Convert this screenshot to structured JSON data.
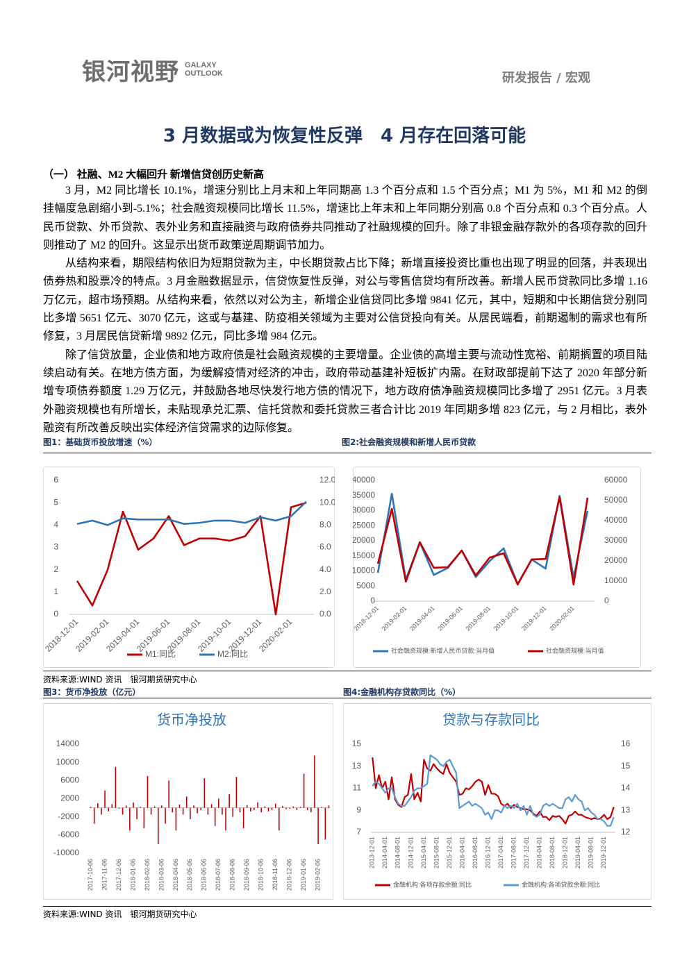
{
  "header": {
    "logo": "银河视野",
    "logo_en": "GALAXY OUTLOOK",
    "report_type": "研发报告 / 宏观"
  },
  "title": "3 月数据或为恢复性反弹　4 月存在回落可能",
  "section_heading": "（一）  社融、M2 大幅回升    新增信贷创历史新高",
  "paragraphs": [
    "3 月，M2 同比增长 10.1%，增速分别比上月末和上年同期高 1.3 个百分点和 1.5 个百分点；M1 为 5%，M1 和 M2 的倒挂幅度急剧缩小到-5.1%；社会融资规模同比增长 11.5%，增速比上年末和上年同期分别高 0.8 个百分点和 0.3 个百分点。人民币贷款、外币贷款、表外业务和直接融资与政府债券共同推动了社融规模的回升。除了非银金融存款外的各项存款的回升则推动了 M2 的回升。这显示出货币政策逆周期调节加力。",
    "从结构来看，期限结构依旧为短期贷款为主，中长期贷款占比下降；新增直接投资比重也出现了明显的回落，并表现出债券热和股票冷的特点。3 月金融数据显示，信贷恢复性反弹，对公与零售信贷均有所改善。新增人民币贷款同比多增 1.16 万亿元，超市场预期。从结构来看，依然以对公为主，新增企业信贷同比多增 9841 亿元，其中，短期和中长期信贷分别同比多增 5651 亿元、3070 亿元，这或与基建、防疫相关领域为主要对公信贷投向有关。从居民端看，前期遏制的需求也有所修复，3 月居民信贷新增 9892 亿元，同比多增 984 亿元。",
    "除了信贷放量，企业债和地方政府债是社会融资规模的主要增量。企业债的高增主要与流动性宽裕、前期搁置的项目陆续启动有关。在地方债方面，为缓解疫情对经济的冲击，政府带动基建补短板扩内需。在财政部提前下达了 2020 年部分新增专项债券额度 1.29 万亿元，并鼓励各地尽快发行地方债的情况下，地方政府债净融资规模同比多增了 2951 亿元。3 月表外融资规模也有所增长，未贴现承兑汇票、信托贷款和委托贷款三者合计比 2019 年同期多增 823 亿元，与 2 月相比，表外融资有所改善反映出实体经济信贷需求的边际修复。"
  ],
  "captions": [
    "图1：基础货币投放增速（%）",
    "图2:社会融资规模和新增人民币贷款",
    "图3：货币净投放（亿元）",
    "图4:金融机构存贷款同比（%）"
  ],
  "sources": [
    "资料来源:WIND 资讯　银河期货研究中心",
    "资料来源:WIND 资讯　银河期货研究中心"
  ],
  "chart_data": [
    {
      "type": "line",
      "grid": false,
      "legend": "bottom",
      "categories": [
        "2018-12-01",
        null,
        "2019-02-01",
        null,
        "2019-04-01",
        null,
        "2019-06-01",
        null,
        "2019-08-01",
        null,
        "2019-10-01",
        null,
        "2019-12-01",
        null,
        "2020-02-01",
        null
      ],
      "series": [
        {
          "name": "M1:同比",
          "color": "#c00000",
          "values": [
            1.5,
            0.4,
            2.0,
            4.6,
            2.9,
            3.4,
            4.4,
            3.1,
            3.4,
            3.4,
            3.3,
            3.5,
            4.4,
            0.0,
            4.8,
            5.0
          ]
        },
        {
          "name": "M2:同比",
          "color": "#2e75b6",
          "axis": "y2",
          "values": [
            8.1,
            8.4,
            8.0,
            8.6,
            8.5,
            8.5,
            8.5,
            8.1,
            8.2,
            8.4,
            8.4,
            8.2,
            8.7,
            8.4,
            8.8,
            10.1
          ]
        }
      ],
      "ylim": [
        0,
        6
      ],
      "yticks": [
        0,
        1,
        2,
        3,
        4,
        5,
        6
      ],
      "y2lim": [
        0,
        12
      ],
      "y2ticks": [
        {
          "value": 0,
          "label": "0.0"
        },
        {
          "value": 2,
          "label": "2.0"
        },
        {
          "value": 4,
          "label": "4.0"
        },
        {
          "value": 6,
          "label": "6.0"
        },
        {
          "value": 8,
          "label": "8.0"
        },
        {
          "value": 10,
          "label": "10.0"
        },
        {
          "value": 12,
          "label": "12.0"
        }
      ]
    },
    {
      "type": "line",
      "grid": false,
      "legend": "bottom",
      "categories": [
        "2018-12-01",
        null,
        "2019-02-01",
        null,
        "2019-04-01",
        null,
        "2019-06-01",
        null,
        "2019-08-01",
        null,
        "2019-10-01",
        null,
        "2019-12-01",
        null,
        "2020-02-01",
        null
      ],
      "series": [
        {
          "name": "社会融资规模:新增人民币贷款:当月值",
          "color": "#2e75b6",
          "values": [
            9400,
            35600,
            7100,
            19500,
            8700,
            11000,
            16800,
            8000,
            13300,
            17500,
            5700,
            13800,
            10800,
            34900,
            7800,
            29900
          ]
        },
        {
          "name": "社会融资规模:当月值",
          "color": "#c00000",
          "axis": "y2",
          "values": [
            18600,
            45900,
            9700,
            29300,
            16600,
            16900,
            25200,
            12800,
            21700,
            23800,
            8300,
            20700,
            21000,
            51700,
            8300,
            51400
          ]
        }
      ],
      "ylim": [
        0,
        40000
      ],
      "yticks": [
        0,
        5000,
        10000,
        15000,
        20000,
        25000,
        30000,
        35000,
        40000
      ],
      "y2lim": [
        0,
        60000
      ],
      "y2ticks": [
        0,
        10000,
        20000,
        30000,
        40000,
        50000,
        60000
      ]
    },
    {
      "type": "bar",
      "title": "货币净投放",
      "grid": false,
      "color": "#c00000",
      "categories": [
        "2017-10-06",
        null,
        null,
        null,
        "2017-11-06",
        null,
        null,
        null,
        "2017-12-06",
        null,
        null,
        null,
        "2018-01-06",
        null,
        null,
        null,
        "2018-02-06",
        null,
        null,
        null,
        "2018-03-06",
        null,
        null,
        null,
        "2018-04-06",
        null,
        null,
        null,
        "2018-05-06",
        null,
        null,
        null,
        "2018-06-06",
        null,
        null,
        null,
        "2018-07-06",
        null,
        null,
        null,
        "2018-08-06",
        null,
        null,
        null,
        "2018-09-06",
        null,
        null,
        null,
        "2018-10-06",
        null,
        null,
        null,
        "2018-11-06",
        null,
        null,
        null,
        "2018-12-06",
        null,
        null,
        null,
        "2019-01-06",
        null,
        null,
        null,
        "2019-02-06",
        null,
        null,
        null
      ],
      "values": [
        200,
        -3500,
        1000,
        -1500,
        3800,
        -800,
        800,
        9000,
        -200,
        -1500,
        500,
        -5000,
        1200,
        -2500,
        200,
        -4500,
        7000,
        -1500,
        300,
        -8000,
        500,
        -3500,
        6000,
        -1000,
        -5000,
        700,
        -1500,
        2500,
        -2500,
        500,
        -1200,
        -500,
        6500,
        -1500,
        800,
        -4000,
        2000,
        -1500,
        -5000,
        3000,
        -2000,
        6800,
        -1000,
        -4500,
        600,
        -800,
        -500,
        1200,
        -1000,
        300,
        -800,
        -500,
        900,
        -5000,
        400,
        -300,
        -200,
        300,
        -500,
        200,
        7500,
        -500,
        -1000,
        11500,
        -8000,
        200,
        -7000,
        500
      ],
      "ylim": [
        -10000,
        14000
      ],
      "yticks": [
        -10000,
        -6000,
        -2000,
        2000,
        6000,
        10000,
        14000
      ]
    },
    {
      "type": "line",
      "title": "贷款与存款同比",
      "grid": false,
      "legend": "bottom",
      "categories": [
        "2013-12-01",
        null,
        null,
        null,
        "2014-04-01",
        null,
        null,
        null,
        "2014-08-01",
        null,
        null,
        null,
        "2014-12-01",
        null,
        null,
        null,
        "2015-04-01",
        null,
        null,
        null,
        "2015-08-01",
        null,
        null,
        null,
        "2015-12-01",
        null,
        null,
        null,
        "2016-04-01",
        null,
        null,
        null,
        "2016-08-01",
        null,
        null,
        null,
        "2016-12-01",
        null,
        null,
        null,
        "2017-04-01",
        null,
        null,
        null,
        "2017-08-01",
        null,
        null,
        null,
        "2017-12-01",
        null,
        null,
        null,
        "2018-04-01",
        null,
        null,
        null,
        "2018-08-01",
        null,
        null,
        null,
        "2018-12-01",
        null,
        null,
        null,
        "2019-04-01",
        null,
        null,
        null,
        "2019-08-01",
        null,
        null,
        null,
        "2019-12-01",
        null,
        null,
        null
      ],
      "series": [
        {
          "name": "金融机构:各项存款余额:同比",
          "color": "#c00000",
          "values": [
            13.8,
            11.0,
            12.2,
            11.0,
            11.6,
            10.0,
            12.0,
            10.0,
            9.5,
            9.3,
            10.2,
            10.4,
            12.3,
            10.0,
            10.6,
            9.8,
            13.6,
            12.8,
            12.6,
            13.2,
            12.8,
            12.5,
            12.3,
            13.2,
            12.4,
            12.0,
            11.6,
            10.4,
            10.5,
            11.0,
            10.9,
            11.2,
            11.6,
            11.8,
            11.6,
            10.4,
            11.3,
            10.5,
            10.5,
            10.3,
            9.6,
            9.4,
            9.6,
            9.2,
            9.5,
            9.3,
            9.2,
            9.1,
            9.1,
            9.0,
            8.7,
            8.5,
            8.9,
            8.4,
            8.4,
            8.1,
            8.5,
            8.4,
            8.5,
            8.2,
            7.8,
            8.5,
            8.6,
            8.9,
            8.6,
            8.6,
            8.4,
            8.3,
            8.2,
            8.3,
            8.2,
            8.3,
            8.6,
            8.2,
            8.4,
            9.3
          ]
        },
        {
          "name": "金融机构:各项贷款余额:同比",
          "color": "#5b9bd5",
          "axis": "y2",
          "values": [
            14.1,
            14.3,
            14.2,
            14.0,
            13.8,
            14.0,
            14.0,
            13.6,
            13.3,
            13.2,
            13.2,
            13.4,
            13.6,
            13.9,
            14.0,
            14.0,
            14.1,
            14.2,
            15.5,
            15.4,
            15.3,
            15.1,
            15.0,
            15.2,
            15.3,
            15.0,
            14.7,
            13.1,
            13.2,
            13.3,
            13.4,
            13.2,
            13.3,
            13.2,
            13.1,
            12.8,
            12.9,
            12.6,
            13.0,
            13.0,
            12.9,
            13.2,
            13.1,
            13.2,
            13.1,
            13.3,
            13.0,
            13.2,
            12.8,
            13.2,
            12.8,
            12.7,
            12.8,
            13.2,
            13.3,
            13.2,
            13.3,
            13.2,
            13.1,
            13.1,
            13.5,
            13.6,
            13.4,
            13.7,
            13.5,
            13.4,
            13.0,
            13.1,
            12.9,
            12.8,
            12.6,
            12.6,
            12.5,
            12.3,
            12.3,
            12.7
          ]
        }
      ],
      "ylim": [
        7,
        15
      ],
      "yticks": [
        7,
        9,
        11,
        13,
        15
      ],
      "y2lim": [
        12,
        16
      ],
      "y2ticks": [
        12,
        13,
        14,
        15,
        16
      ]
    }
  ]
}
